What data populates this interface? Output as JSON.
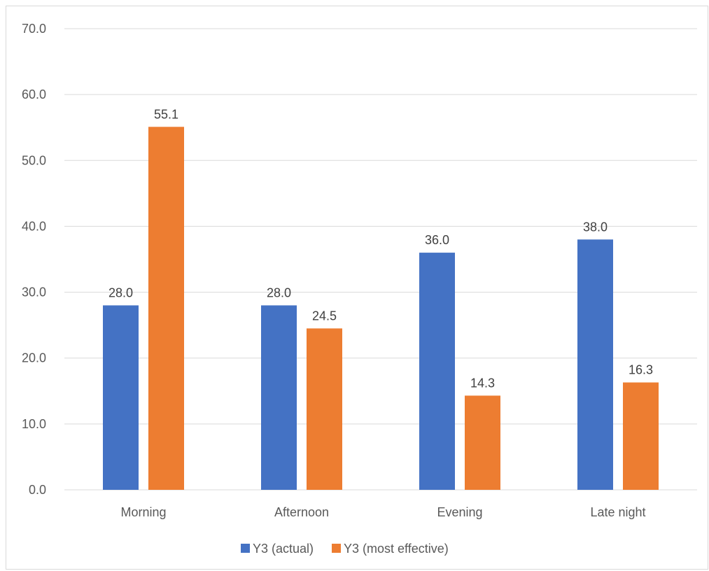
{
  "chart_data": {
    "type": "bar",
    "title": "",
    "xlabel": "",
    "ylabel": "",
    "categories": [
      "Morning",
      "Afternoon",
      "Evening",
      "Late night"
    ],
    "series": [
      {
        "name": "Y3 (actual)",
        "color": "#4472C4",
        "values": [
          28.0,
          28.0,
          36.0,
          38.0
        ]
      },
      {
        "name": "Y3 (most effective)",
        "color": "#ED7D31",
        "values": [
          55.1,
          24.5,
          14.3,
          16.3
        ]
      }
    ],
    "ylim": [
      0,
      70
    ],
    "yticks": [
      "0.0",
      "10.0",
      "20.0",
      "30.0",
      "40.0",
      "50.0",
      "60.0",
      "70.0"
    ],
    "grid": true,
    "legend_position": "bottom"
  }
}
